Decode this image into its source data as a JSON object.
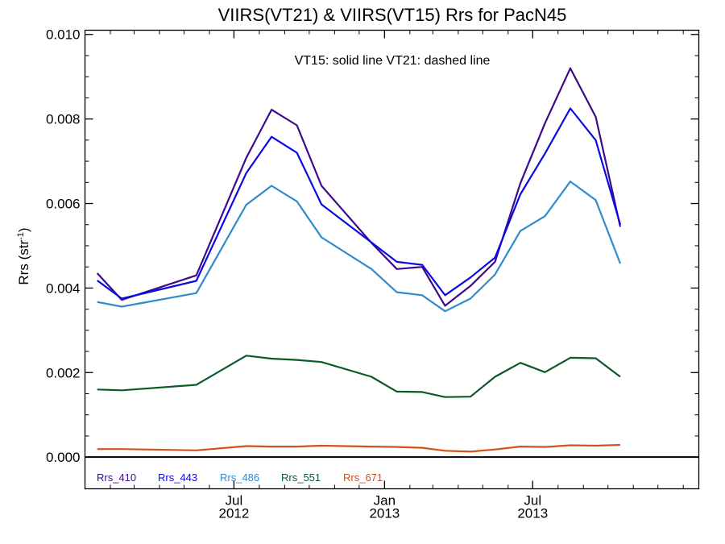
{
  "chart_data": {
    "type": "line",
    "title": "VIIRS(VT21) & VIIRS(VT15)  Rrs for PacN45",
    "ylabel": "Rrs (str",
    "ylabel_sup": "-1",
    "ylabel_close": ")",
    "annotation": "VT15: solid line   VT21: dashed line",
    "xlim": [
      "2012-01-01",
      "2014-01-20"
    ],
    "ylim": [
      -0.00075,
      0.0101
    ],
    "y_ticks": [
      0.0,
      0.002,
      0.004,
      0.006,
      0.008,
      0.01
    ],
    "y_tick_labels": [
      "0.000",
      "0.002",
      "0.004",
      "0.006",
      "0.008",
      "0.010"
    ],
    "x_ticks": [
      {
        "date": "2012-07-01",
        "month": "Jul",
        "year": "2012"
      },
      {
        "date": "2013-01-01",
        "month": "Jan",
        "year": "2013"
      },
      {
        "date": "2013-07-01",
        "month": "Jul",
        "year": "2013"
      }
    ],
    "x_minor_ticks": [
      "2012-02-01",
      "2012-03-01",
      "2012-04-01",
      "2012-05-01",
      "2012-06-01",
      "2012-08-01",
      "2012-09-01",
      "2012-10-01",
      "2012-11-01",
      "2012-12-01",
      "2013-02-01",
      "2013-03-01",
      "2013-04-01",
      "2013-05-01",
      "2013-06-01",
      "2013-08-01",
      "2013-09-01",
      "2013-10-01",
      "2013-11-01",
      "2013-12-01",
      "2014-01-01"
    ],
    "zero_line": true,
    "legend_position": "bottom-left",
    "x": [
      "2012-01-16",
      "2012-02-15",
      "2012-05-16",
      "2012-07-16",
      "2012-08-16",
      "2012-09-16",
      "2012-10-16",
      "2012-12-16",
      "2013-01-16",
      "2013-02-16",
      "2013-03-16",
      "2013-04-16",
      "2013-05-16",
      "2013-06-16",
      "2013-07-16",
      "2013-08-16",
      "2013-09-16",
      "2013-10-16"
    ],
    "series": [
      {
        "name": "Rrs_410",
        "color": "#3d0a8c",
        "values": [
          0.00435,
          0.00372,
          0.0043,
          0.00708,
          0.00822,
          0.00785,
          0.00642,
          0.00507,
          0.00445,
          0.0045,
          0.00358,
          0.00405,
          0.00462,
          0.00648,
          0.0079,
          0.0092,
          0.00805,
          0.00545
        ]
      },
      {
        "name": "Rrs_443",
        "color": "#0a0ae6",
        "values": [
          0.00418,
          0.00375,
          0.00417,
          0.00672,
          0.00758,
          0.0072,
          0.00598,
          0.00508,
          0.00462,
          0.00455,
          0.00383,
          0.00425,
          0.00472,
          0.00622,
          0.00718,
          0.00825,
          0.0075,
          0.0055
        ]
      },
      {
        "name": "Rrs_486",
        "color": "#2e8bcc",
        "values": [
          0.00367,
          0.00356,
          0.00388,
          0.00597,
          0.00642,
          0.00605,
          0.0052,
          0.00445,
          0.0039,
          0.00383,
          0.00345,
          0.00375,
          0.00432,
          0.00535,
          0.0057,
          0.00652,
          0.00608,
          0.00458
        ]
      },
      {
        "name": "Rrs_551",
        "color": "#0b5a2a",
        "values": [
          0.0016,
          0.00158,
          0.00171,
          0.0024,
          0.00233,
          0.0023,
          0.00225,
          0.0019,
          0.00155,
          0.00154,
          0.00142,
          0.00143,
          0.0019,
          0.00223,
          0.00201,
          0.00235,
          0.00234,
          0.0019
        ]
      },
      {
        "name": "Rrs_671",
        "color": "#d2521a",
        "values": [
          0.00019,
          0.00019,
          0.00016,
          0.00026,
          0.00025,
          0.00025,
          0.00027,
          0.00025,
          0.00024,
          0.00022,
          0.00015,
          0.00013,
          0.00018,
          0.00025,
          0.00024,
          0.00028,
          0.00027,
          0.00029
        ]
      }
    ]
  }
}
